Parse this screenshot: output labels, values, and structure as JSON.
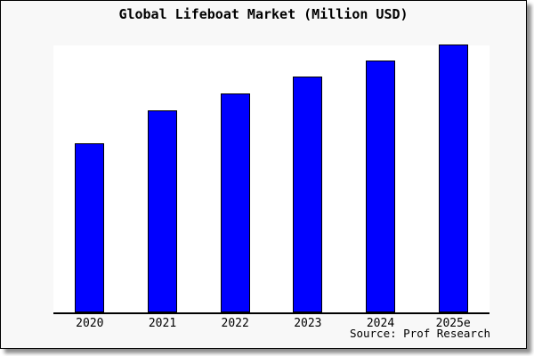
{
  "window": {
    "background_color": "#f8f8f8",
    "border_color": "#000000",
    "plot_background_color": "#ffffff"
  },
  "chart_data": {
    "type": "bar",
    "title": "Global Lifeboat Market (Million USD)",
    "categories": [
      "2020",
      "2021",
      "2022",
      "2023",
      "2024",
      "2025e"
    ],
    "values": [
      188,
      225,
      244,
      263,
      281,
      299
    ],
    "value_note": "relative bar heights estimated from pixels; no y-axis ticks shown",
    "ylim": [
      0,
      300
    ],
    "xlabel": "",
    "ylabel": "",
    "grid": false,
    "y_axis_visible": false,
    "legend": "none",
    "bar_color": "#0000ff",
    "bar_border_color": "#000000",
    "source_note": "Source: Prof Research"
  }
}
